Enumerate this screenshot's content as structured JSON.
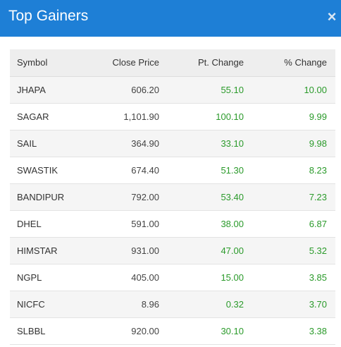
{
  "header": {
    "title": "Top Gainers",
    "close_label": "×"
  },
  "table": {
    "columns": [
      "Symbol",
      "Close Price",
      "Pt. Change",
      "% Change"
    ],
    "rows": [
      {
        "symbol": "JHAPA",
        "close": "606.20",
        "pt": "55.10",
        "pct": "10.00"
      },
      {
        "symbol": "SAGAR",
        "close": "1,101.90",
        "pt": "100.10",
        "pct": "9.99"
      },
      {
        "symbol": "SAIL",
        "close": "364.90",
        "pt": "33.10",
        "pct": "9.98"
      },
      {
        "symbol": "SWASTIK",
        "close": "674.40",
        "pt": "51.30",
        "pct": "8.23"
      },
      {
        "symbol": "BANDIPUR",
        "close": "792.00",
        "pt": "53.40",
        "pct": "7.23"
      },
      {
        "symbol": "DHEL",
        "close": "591.00",
        "pt": "38.00",
        "pct": "6.87"
      },
      {
        "symbol": "HIMSTAR",
        "close": "931.00",
        "pt": "47.00",
        "pct": "5.32"
      },
      {
        "symbol": "NGPL",
        "close": "405.00",
        "pt": "15.00",
        "pct": "3.85"
      },
      {
        "symbol": "NICFC",
        "close": "8.96",
        "pt": "0.32",
        "pct": "3.70"
      },
      {
        "symbol": "SLBBL",
        "close": "920.00",
        "pt": "30.10",
        "pct": "3.38"
      }
    ]
  },
  "colors": {
    "header_bg": "#1e7fd6",
    "gain_text": "#2a9a2a",
    "row_alt": "#f5f5f5"
  }
}
